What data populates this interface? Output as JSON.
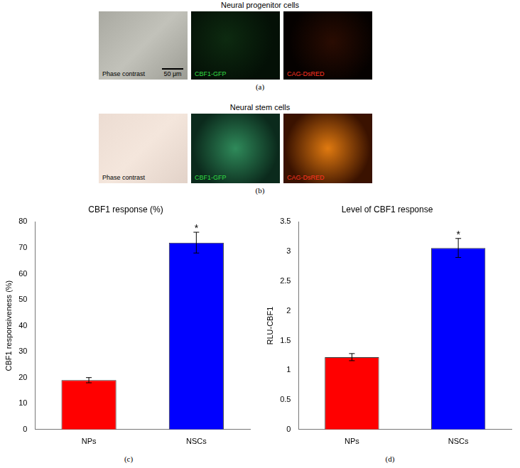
{
  "figure": {
    "rows": [
      {
        "title": "Neural progenitor cells",
        "label": "(a)",
        "images": [
          {
            "text": "Phase contrast",
            "scale_bar": "50 μm"
          },
          {
            "text": "CBF1-GFP"
          },
          {
            "text": "CAG-DsRED"
          }
        ]
      },
      {
        "title": "Neural stem cells",
        "label": "(b)",
        "images": [
          {
            "text": "Phase contrast"
          },
          {
            "text": "CBF1-GFP"
          },
          {
            "text": "CAG-DsRED"
          }
        ]
      }
    ]
  },
  "chart_data": [
    {
      "type": "bar",
      "title": "CBF1 response (%)",
      "y_label": "CBF1 responsiveness (%)",
      "caption": "(c)",
      "categories": [
        "NPs",
        "NSCs"
      ],
      "values": [
        19,
        72
      ],
      "errors": [
        1,
        4
      ],
      "colors": [
        "#ff0000",
        "#0000ff"
      ],
      "ylim": [
        0,
        80
      ],
      "yticks": [
        0,
        10,
        20,
        30,
        40,
        50,
        60,
        70,
        80
      ],
      "grid": false,
      "annotations": [
        {
          "category": "NSCs",
          "text": "*"
        }
      ]
    },
    {
      "type": "bar",
      "title": "Level of CBF1 response",
      "y_label": "RLU-CBF1",
      "caption": "(d)",
      "categories": [
        "NPs",
        "NSCs"
      ],
      "values": [
        1.22,
        3.06
      ],
      "errors": [
        0.06,
        0.16
      ],
      "colors": [
        "#ff0000",
        "#0000ff"
      ],
      "ylim": [
        0,
        3.5
      ],
      "yticks": [
        0,
        0.5,
        1,
        1.5,
        2,
        2.5,
        3,
        3.5
      ],
      "grid": false,
      "annotations": [
        {
          "category": "NSCs",
          "text": "*"
        }
      ]
    }
  ]
}
